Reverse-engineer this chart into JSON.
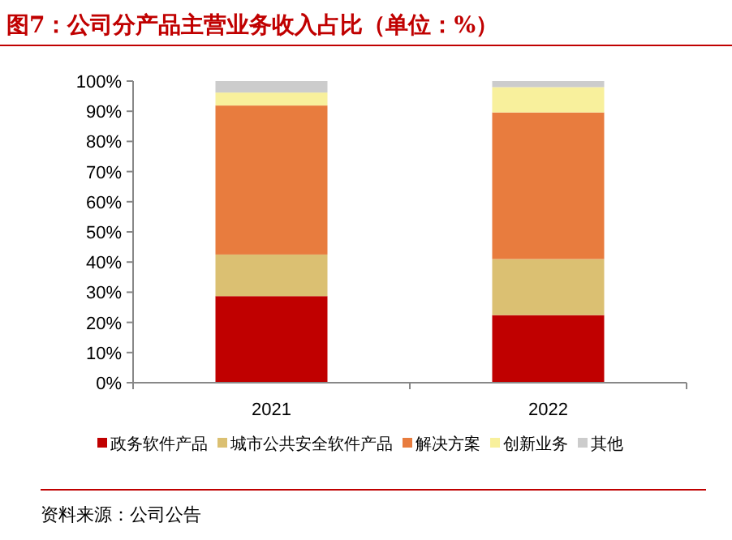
{
  "chart_data": {
    "type": "bar",
    "stacked": true,
    "title": "图7：公司分产品主营业务收入占比（单位：%）",
    "categories": [
      "2021",
      "2022"
    ],
    "series": [
      {
        "name": "政务软件产品",
        "color": "#c00000",
        "values": [
          28.7,
          22.4
        ]
      },
      {
        "name": "城市公共安全软件产品",
        "color": "#dbc072",
        "values": [
          13.8,
          18.6
        ]
      },
      {
        "name": "解决方案",
        "color": "#e87c3e",
        "values": [
          49.4,
          48.6
        ]
      },
      {
        "name": "创新业务",
        "color": "#f8f09c",
        "values": [
          4.3,
          8.4
        ]
      },
      {
        "name": "其他",
        "color": "#cccccc",
        "values": [
          3.8,
          2.0
        ]
      }
    ],
    "ylim": [
      0,
      100
    ],
    "yticks": [
      {
        "value": 0,
        "label": "0%"
      },
      {
        "value": 10,
        "label": "10%"
      },
      {
        "value": 20,
        "label": "20%"
      },
      {
        "value": 30,
        "label": "30%"
      },
      {
        "value": 40,
        "label": "40%"
      },
      {
        "value": 50,
        "label": "50%"
      },
      {
        "value": 60,
        "label": "60%"
      },
      {
        "value": 70,
        "label": "70%"
      },
      {
        "value": 80,
        "label": "80%"
      },
      {
        "value": 90,
        "label": "90%"
      },
      {
        "value": 100,
        "label": "100%"
      }
    ],
    "grid": false,
    "legend": "bottom",
    "annotations": [
      "资料来源：公司公告"
    ]
  }
}
